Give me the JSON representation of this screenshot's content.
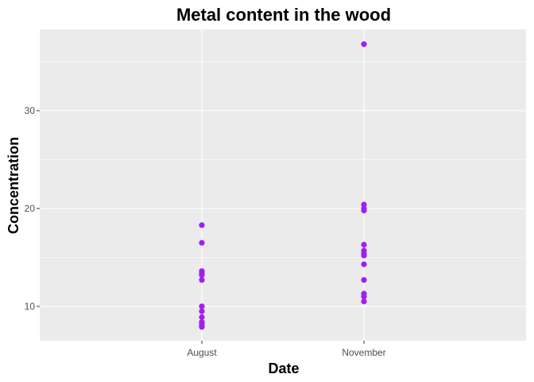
{
  "chart_data": {
    "type": "scatter",
    "title": "Metal content in the wood",
    "xlabel": "Date",
    "ylabel": "Concentration",
    "categories": [
      "August",
      "November"
    ],
    "yticks": [
      10,
      20,
      30
    ],
    "ylim": [
      6.5,
      38.3
    ],
    "grid": true,
    "legend": "none",
    "colors": {
      "panel_background": "#EBEBEB",
      "grid": "#FFFFFF",
      "point": "#A020F0",
      "tick": "#333333"
    },
    "series": [
      {
        "category": "August",
        "values": [
          18.3,
          16.5,
          13.6,
          13.4,
          13.2,
          12.7,
          10.0,
          9.5,
          8.9,
          8.4,
          8.2,
          8.0,
          7.9
        ]
      },
      {
        "category": "November",
        "values": [
          36.8,
          20.4,
          20.0,
          19.8,
          16.3,
          15.7,
          15.4,
          15.2,
          14.3,
          12.7,
          11.3,
          11.0,
          10.5
        ]
      }
    ]
  }
}
